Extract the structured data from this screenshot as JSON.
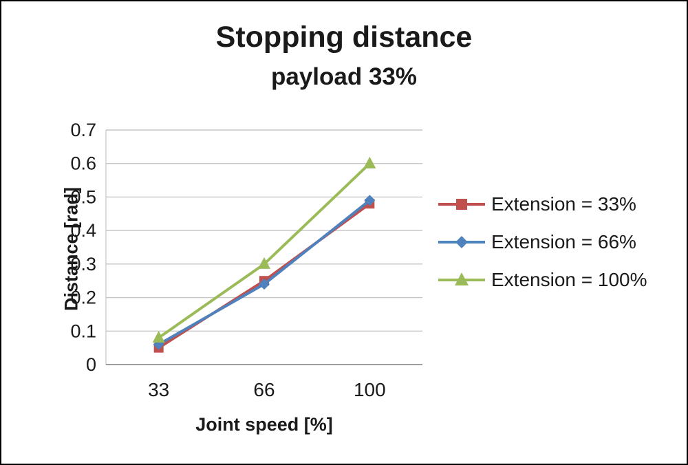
{
  "chart": {
    "title": "Stopping distance",
    "subtitle": "payload 33%"
  },
  "chart_data": {
    "type": "line",
    "title": "Stopping distance",
    "subtitle": "payload 33%",
    "categories": [
      33,
      66,
      100
    ],
    "x_tick_labels": [
      "33",
      "66",
      "100"
    ],
    "series": [
      {
        "name": "Extension = 33%",
        "values": [
          0.05,
          0.25,
          0.48
        ],
        "color": "#C0504D",
        "marker": "square"
      },
      {
        "name": "Extension = 66%",
        "values": [
          0.06,
          0.24,
          0.49
        ],
        "color": "#4F81BD",
        "marker": "diamond"
      },
      {
        "name": "Extension = 100%",
        "values": [
          0.08,
          0.3,
          0.6
        ],
        "color": "#9BBB59",
        "marker": "triangle"
      }
    ],
    "xlabel": "Joint speed [%]",
    "ylabel": "Distance [rad]",
    "ylim": [
      0,
      0.7
    ],
    "y_ticks": [
      0,
      0.1,
      0.2,
      0.3,
      0.4,
      0.5,
      0.6,
      0.7
    ],
    "grid": true,
    "legend_position": "right",
    "colors": {
      "gridline": "#C6C6C6",
      "axis_line": "#7F7F7F",
      "text": "#1a1a1a"
    }
  }
}
